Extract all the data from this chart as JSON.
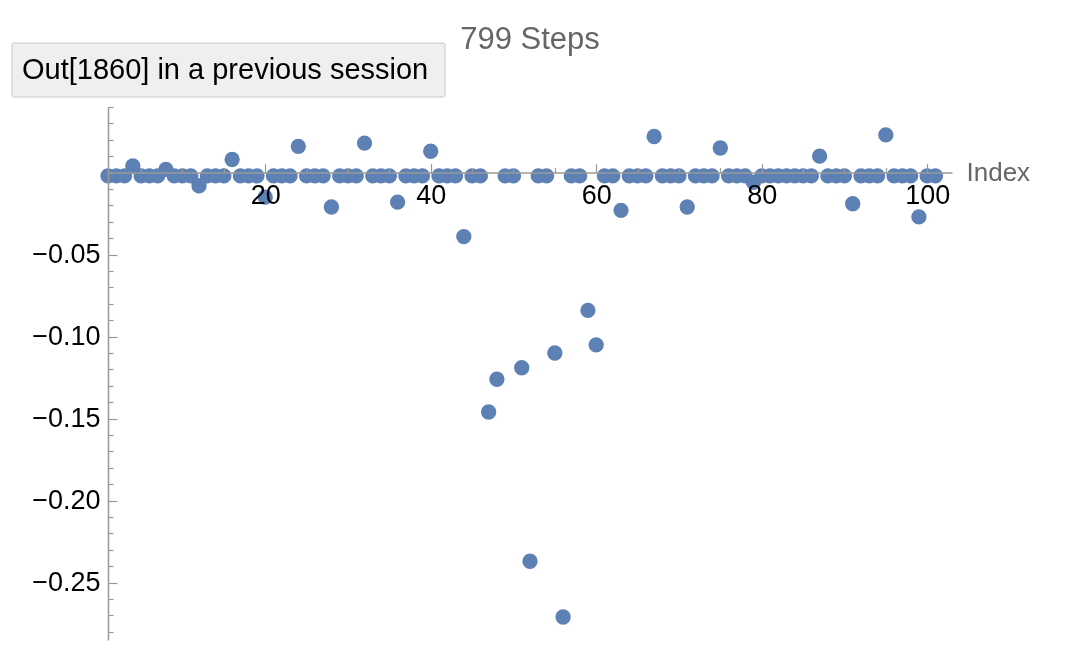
{
  "chart_data": {
    "type": "scatter",
    "title": "799 Steps",
    "xlabel": "Index",
    "annotations": [
      "Out[1860] in a previous session"
    ],
    "x": [
      1,
      2,
      3,
      4,
      5,
      6,
      7,
      8,
      9,
      10,
      11,
      12,
      13,
      14,
      15,
      16,
      17,
      18,
      19,
      20,
      21,
      22,
      23,
      24,
      25,
      26,
      27,
      28,
      29,
      30,
      31,
      32,
      33,
      34,
      35,
      36,
      37,
      38,
      39,
      40,
      41,
      42,
      43,
      44,
      45,
      46,
      47,
      48,
      49,
      50,
      51,
      52,
      53,
      54,
      55,
      56,
      57,
      58,
      59,
      60,
      61,
      62,
      63,
      64,
      65,
      66,
      67,
      68,
      69,
      70,
      71,
      72,
      73,
      74,
      75,
      76,
      77,
      78,
      79,
      80,
      81,
      82,
      83,
      84,
      85,
      86,
      87,
      88,
      89,
      90,
      91,
      92,
      93,
      94,
      95,
      96,
      97,
      98,
      99,
      100,
      101
    ],
    "series": [
      {
        "color": "#5e81b5",
        "values": [
          -0.002,
          -0.002,
          -0.002,
          0.004,
          -0.002,
          -0.002,
          -0.002,
          0.002,
          -0.002,
          -0.002,
          -0.002,
          -0.008,
          -0.002,
          -0.002,
          -0.002,
          0.008,
          -0.002,
          -0.002,
          -0.002,
          -0.015,
          -0.002,
          -0.002,
          -0.002,
          0.016,
          -0.002,
          -0.002,
          -0.002,
          -0.021,
          -0.002,
          -0.002,
          -0.002,
          0.018,
          -0.002,
          -0.002,
          -0.002,
          -0.018,
          -0.002,
          -0.002,
          -0.002,
          0.013,
          -0.002,
          -0.002,
          -0.002,
          -0.039,
          -0.002,
          -0.002,
          -0.146,
          -0.126,
          -0.002,
          -0.002,
          -0.119,
          -0.237,
          -0.002,
          -0.002,
          -0.11,
          -0.271,
          -0.002,
          -0.002,
          -0.084,
          -0.105,
          -0.002,
          -0.002,
          -0.023,
          -0.002,
          -0.002,
          -0.002,
          0.022,
          -0.002,
          -0.002,
          -0.002,
          -0.021,
          -0.002,
          -0.002,
          -0.002,
          0.015,
          -0.002,
          -0.002,
          -0.002,
          -0.006,
          -0.002,
          -0.002,
          -0.002,
          -0.002,
          -0.002,
          -0.002,
          -0.002,
          0.01,
          -0.002,
          -0.002,
          -0.002,
          -0.019,
          -0.002,
          -0.002,
          -0.002,
          0.023,
          -0.002,
          -0.002,
          -0.002,
          -0.027,
          -0.002,
          -0.002
        ]
      }
    ],
    "marker": "circle",
    "xlim": [
      1,
      103
    ],
    "ylim": [
      -0.285,
      0.04
    ],
    "xticks": [
      {
        "value": 5,
        "label": null
      },
      {
        "value": 10,
        "label": null
      },
      {
        "value": 15,
        "label": null
      },
      20,
      {
        "value": 25,
        "label": null
      },
      {
        "value": 30,
        "label": null
      },
      {
        "value": 35,
        "label": null
      },
      40,
      {
        "value": 45,
        "label": null
      },
      {
        "value": 50,
        "label": null
      },
      {
        "value": 55,
        "label": null
      },
      60,
      {
        "value": 65,
        "label": null
      },
      {
        "value": 70,
        "label": null
      },
      {
        "value": 75,
        "label": null
      },
      80,
      {
        "value": 85,
        "label": null
      },
      {
        "value": 90,
        "label": null
      },
      {
        "value": 95,
        "label": null
      },
      100
    ],
    "yticks": [
      {
        "value": 0.04,
        "label": null
      },
      {
        "value": 0.03,
        "label": null
      },
      {
        "value": 0.02,
        "label": null
      },
      {
        "value": 0.01,
        "label": null
      },
      {
        "value": 0,
        "label": null
      },
      {
        "value": -0.01,
        "label": null
      },
      {
        "value": -0.02,
        "label": null
      },
      {
        "value": -0.03,
        "label": null
      },
      {
        "value": -0.04,
        "label": null
      },
      {
        "value": -0.05,
        "label": "−0.05"
      },
      {
        "value": -0.06,
        "label": null
      },
      {
        "value": -0.07,
        "label": null
      },
      {
        "value": -0.08,
        "label": null
      },
      {
        "value": -0.09,
        "label": null
      },
      {
        "value": -0.1,
        "label": "−0.10"
      },
      {
        "value": -0.11,
        "label": null
      },
      {
        "value": -0.12,
        "label": null
      },
      {
        "value": -0.13,
        "label": null
      },
      {
        "value": -0.14,
        "label": null
      },
      {
        "value": -0.15,
        "label": "−0.15"
      },
      {
        "value": -0.16,
        "label": null
      },
      {
        "value": -0.17,
        "label": null
      },
      {
        "value": -0.18,
        "label": null
      },
      {
        "value": -0.19,
        "label": null
      },
      {
        "value": -0.2,
        "label": "−0.20"
      },
      {
        "value": -0.21,
        "label": null
      },
      {
        "value": -0.22,
        "label": null
      },
      {
        "value": -0.23,
        "label": null
      },
      {
        "value": -0.24,
        "label": null
      },
      {
        "value": -0.25,
        "label": "−0.25"
      },
      {
        "value": -0.26,
        "label": null
      },
      {
        "value": -0.27,
        "label": null
      },
      {
        "value": -0.28,
        "label": null
      }
    ]
  }
}
